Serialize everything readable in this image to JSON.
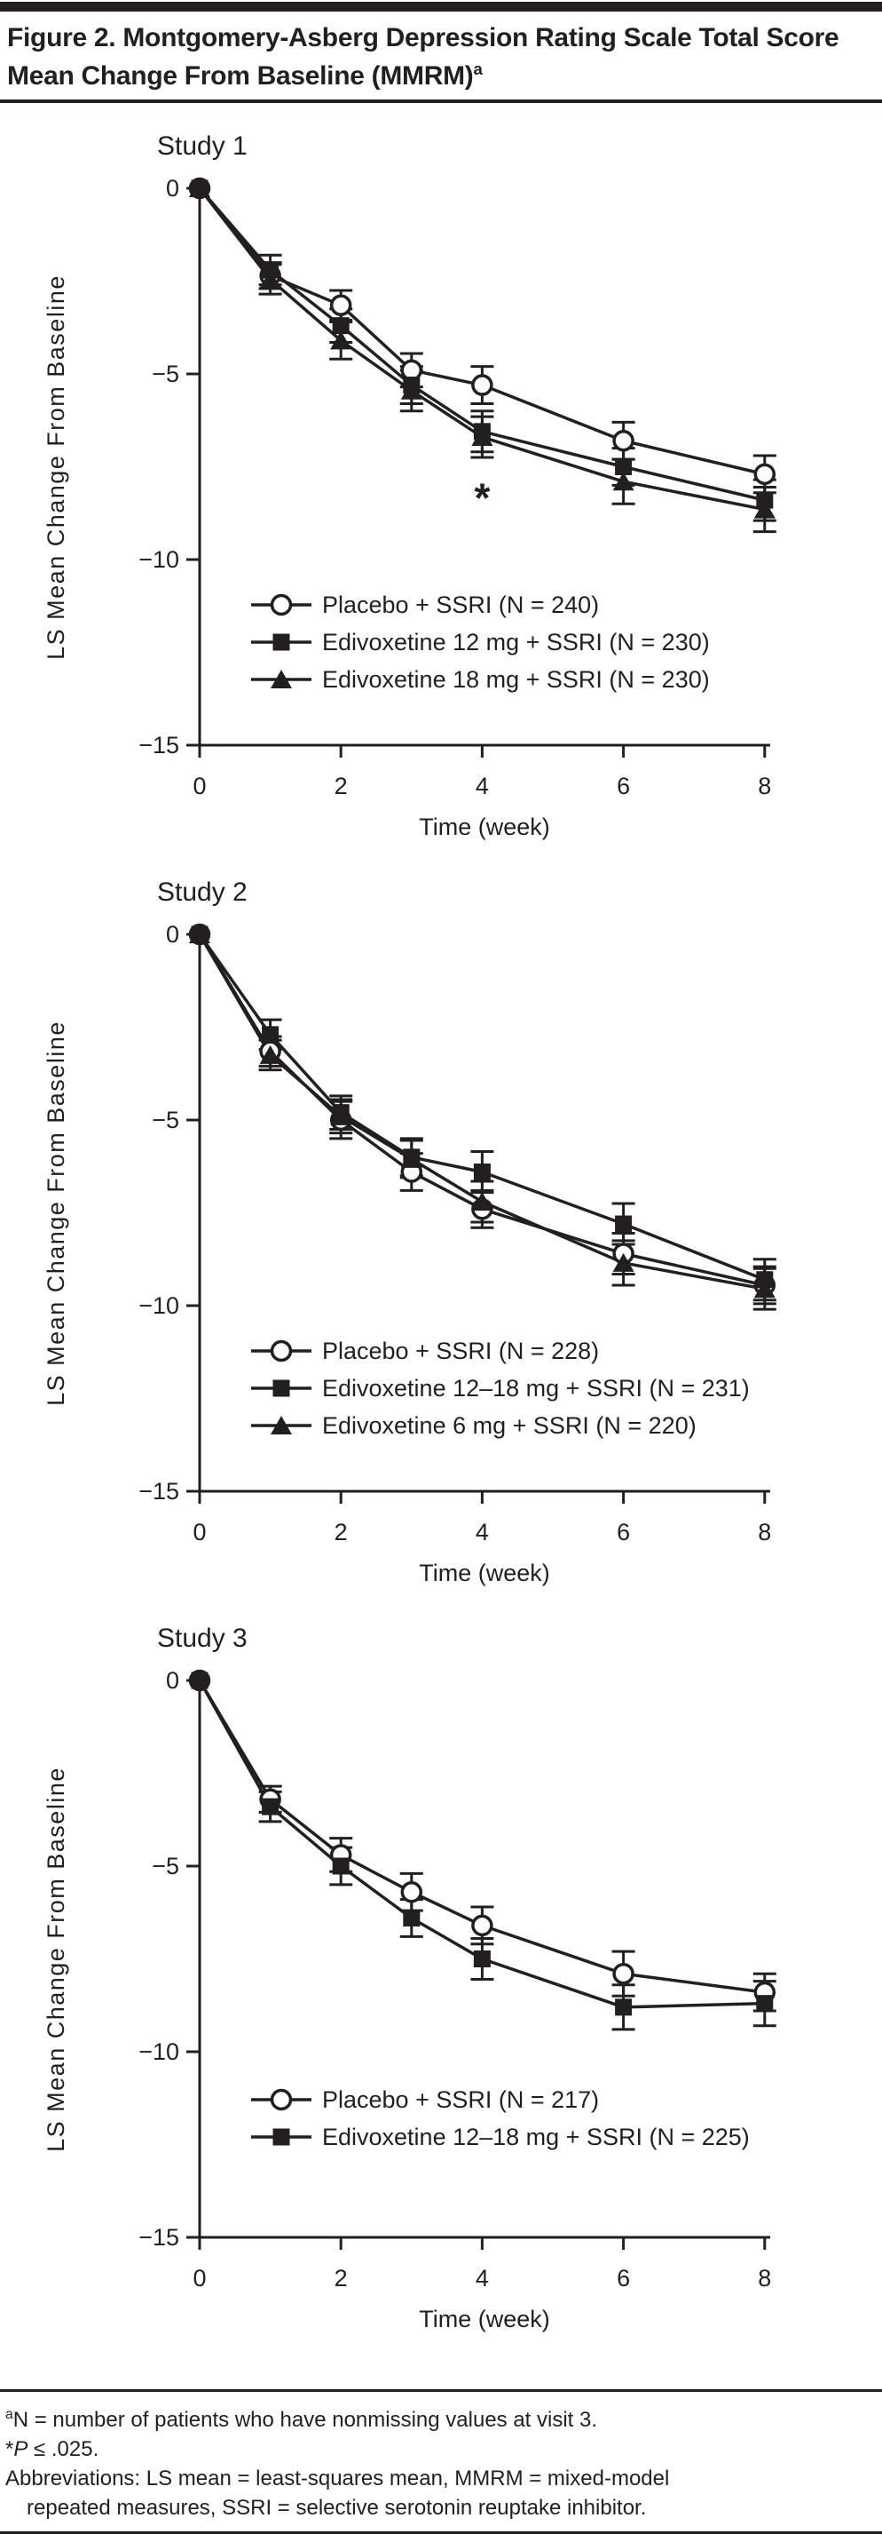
{
  "colors": {
    "ink": "#231f20",
    "background": "#ffffff"
  },
  "header": {
    "title": "Figure 2. Montgomery-Asberg Depression Rating Scale Total Score Mean Change From Baseline (MMRM)",
    "title_sup": "a"
  },
  "axis": {
    "ylabel": "LS Mean Change From Baseline",
    "xlabel": "Time (week)",
    "yticks": [
      0,
      -5,
      -10,
      -15
    ],
    "yticklabels": [
      "0",
      "−5",
      "−10",
      "−15"
    ],
    "xticks": [
      0,
      2,
      4,
      6,
      8
    ],
    "xticklabels": [
      "0",
      "2",
      "4",
      "6",
      "8"
    ],
    "ylim": [
      -15,
      0
    ],
    "xlim": [
      0,
      8
    ],
    "grid": false
  },
  "chart_data": [
    {
      "type": "line",
      "title": "Study 1",
      "x": [
        0,
        1,
        2,
        3,
        4,
        6,
        8
      ],
      "xlabel": "Time (week)",
      "ylabel": "LS Mean Change From Baseline",
      "ylim": [
        -15,
        0
      ],
      "legend_position": "lower-left",
      "series": [
        {
          "name": "Placebo + SSRI (N = 240)",
          "marker": "circle-open",
          "values": [
            0,
            -2.35,
            -3.15,
            -4.9,
            -5.3,
            -6.8,
            -7.7
          ],
          "err": [
            0,
            0.35,
            0.4,
            0.45,
            0.5,
            0.5,
            0.5
          ]
        },
        {
          "name": "Edivoxetine 12 mg + SSRI (N = 230)",
          "marker": "square-filled",
          "values": [
            0,
            -2.2,
            -3.7,
            -5.3,
            -6.55,
            -7.5,
            -8.4
          ],
          "err": [
            0,
            0.4,
            0.45,
            0.5,
            0.55,
            0.5,
            0.55
          ]
        },
        {
          "name": "Edivoxetine 18 mg + SSRI (N = 230)",
          "marker": "triangle-filled",
          "values": [
            0,
            -2.45,
            -4.1,
            -5.45,
            -6.7,
            -7.9,
            -8.65
          ],
          "err": [
            0,
            0.4,
            0.5,
            0.55,
            0.55,
            0.6,
            0.6
          ]
        }
      ],
      "annotation": {
        "text": "*",
        "x": 4,
        "value": -8.0
      }
    },
    {
      "type": "line",
      "title": "Study 2",
      "x": [
        0,
        1,
        2,
        3,
        4,
        6,
        8
      ],
      "xlabel": "Time (week)",
      "ylabel": "LS Mean Change From Baseline",
      "ylim": [
        -15,
        0
      ],
      "legend_position": "lower-left",
      "series": [
        {
          "name": "Placebo + SSRI (N = 228)",
          "marker": "circle-open",
          "values": [
            0,
            -3.15,
            -5.0,
            -6.4,
            -7.4,
            -8.6,
            -9.45
          ],
          "err": [
            0,
            0.4,
            0.5,
            0.5,
            0.5,
            0.55,
            0.5
          ]
        },
        {
          "name": "Edivoxetine 12–18 mg + SSRI (N = 231)",
          "marker": "square-filled",
          "values": [
            0,
            -2.7,
            -4.8,
            -6.0,
            -6.4,
            -7.8,
            -9.3
          ],
          "err": [
            0,
            0.4,
            0.45,
            0.5,
            0.55,
            0.55,
            0.55
          ]
        },
        {
          "name": "Edivoxetine 6 mg + SSRI (N = 220)",
          "marker": "triangle-filled",
          "values": [
            0,
            -3.25,
            -4.9,
            -6.05,
            -7.2,
            -8.85,
            -9.55
          ],
          "err": [
            0,
            0.4,
            0.45,
            0.5,
            0.55,
            0.6,
            0.55
          ]
        }
      ]
    },
    {
      "type": "line",
      "title": "Study 3",
      "x": [
        0,
        1,
        2,
        3,
        4,
        6,
        8
      ],
      "xlabel": "Time (week)",
      "ylabel": "LS Mean Change From Baseline",
      "ylim": [
        -15,
        0
      ],
      "legend_position": "lower-left",
      "series": [
        {
          "name": "Placebo + SSRI (N = 217)",
          "marker": "circle-open",
          "values": [
            0,
            -3.2,
            -4.7,
            -5.7,
            -6.6,
            -7.9,
            -8.4
          ],
          "err": [
            0,
            0.35,
            0.45,
            0.5,
            0.5,
            0.6,
            0.5
          ]
        },
        {
          "name": "Edivoxetine 12–18 mg + SSRI (N = 225)",
          "marker": "square-filled",
          "values": [
            0,
            -3.4,
            -5.0,
            -6.4,
            -7.5,
            -8.8,
            -8.7
          ],
          "err": [
            0,
            0.4,
            0.5,
            0.5,
            0.55,
            0.6,
            0.6
          ]
        }
      ]
    }
  ],
  "footnotes": {
    "lines": [
      {
        "indent": false,
        "segments": [
          {
            "style": "sup",
            "text": "a"
          },
          {
            "style": "normal",
            "text": "N = number of patients who have nonmissing values at visit 3."
          }
        ]
      },
      {
        "indent": false,
        "segments": [
          {
            "style": "normal",
            "text": "*"
          },
          {
            "style": "italic",
            "text": "P"
          },
          {
            "style": "normal",
            "text": " ≤ .025."
          }
        ]
      },
      {
        "indent": false,
        "segments": [
          {
            "style": "normal",
            "text": "Abbreviations: LS mean = least-squares mean, MMRM = mixed-model"
          }
        ]
      },
      {
        "indent": true,
        "segments": [
          {
            "style": "normal",
            "text": "repeated measures, SSRI = selective serotonin reuptake inhibitor."
          }
        ]
      }
    ]
  }
}
